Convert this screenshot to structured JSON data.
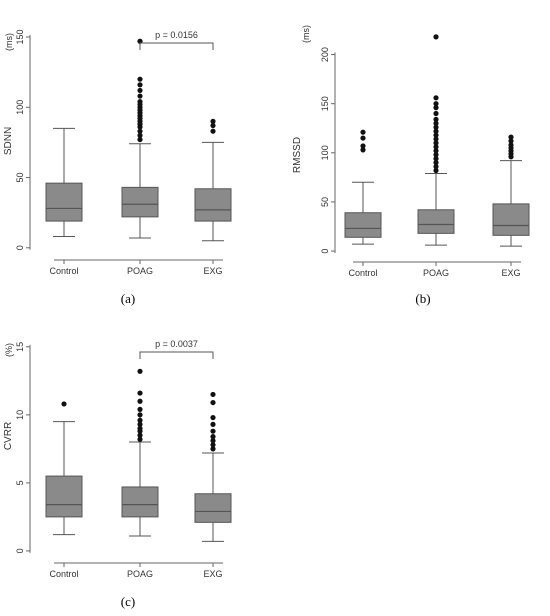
{
  "chart_data": [
    {
      "type": "box",
      "panel_label": "(a)",
      "ylabel": "SDNN",
      "unit": "(ms)",
      "categories": [
        "Control",
        "POAG",
        "EXG"
      ],
      "yticks": [
        0,
        50,
        100,
        150
      ],
      "ylim": [
        -3,
        155
      ],
      "boxes": [
        {
          "whisker_low": 8,
          "q1": 19,
          "median": 28,
          "q3": 46,
          "whisker_high": 85,
          "outliers": []
        },
        {
          "whisker_low": 7,
          "q1": 22,
          "median": 31,
          "q3": 43,
          "whisker_high": 74,
          "outliers": [
            77,
            80,
            83,
            86,
            88,
            90,
            92,
            94,
            96,
            98,
            100,
            102,
            104,
            108,
            112,
            116,
            120,
            147
          ]
        },
        {
          "whisker_low": 5,
          "q1": 19,
          "median": 27,
          "q3": 42,
          "whisker_high": 75,
          "outliers": [
            83,
            87,
            90
          ]
        }
      ],
      "comparison": {
        "from": 1,
        "to": 2,
        "label": "p = 0.0156"
      }
    },
    {
      "type": "box",
      "panel_label": "(b)",
      "ylabel": "RMSSD",
      "unit": "(ms)",
      "categories": [
        "Control",
        "POAG",
        "EXG"
      ],
      "yticks": [
        0,
        50,
        100,
        150,
        200
      ],
      "ylim": [
        -3,
        225
      ],
      "boxes": [
        {
          "whisker_low": 7,
          "q1": 14,
          "median": 23,
          "q3": 39,
          "whisker_high": 70,
          "outliers": [
            103,
            107,
            115,
            121
          ]
        },
        {
          "whisker_low": 6,
          "q1": 18,
          "median": 27,
          "q3": 42,
          "whisker_high": 79,
          "outliers": [
            82,
            86,
            90,
            94,
            98,
            102,
            106,
            110,
            114,
            118,
            122,
            126,
            130,
            134,
            140,
            146,
            150,
            156,
            218
          ]
        },
        {
          "whisker_low": 5,
          "q1": 16,
          "median": 26,
          "q3": 48,
          "whisker_high": 92,
          "outliers": [
            96,
            99,
            102,
            105,
            108,
            112,
            116
          ]
        }
      ]
    },
    {
      "type": "box",
      "panel_label": "(c)",
      "ylabel": "CVRR",
      "unit": "(%)",
      "categories": [
        "Control",
        "POAG",
        "EXG"
      ],
      "yticks": [
        0,
        5,
        10,
        15
      ],
      "ylim": [
        -0.3,
        15.5
      ],
      "boxes": [
        {
          "whisker_low": 1.2,
          "q1": 2.5,
          "median": 3.4,
          "q3": 5.5,
          "whisker_high": 9.5,
          "outliers": [
            10.8
          ]
        },
        {
          "whisker_low": 1.1,
          "q1": 2.5,
          "median": 3.4,
          "q3": 4.7,
          "whisker_high": 8.0,
          "outliers": [
            8.2,
            8.5,
            8.8,
            9.0,
            9.3,
            9.6,
            10.0,
            10.4,
            11.0,
            11.6,
            13.2
          ]
        },
        {
          "whisker_low": 0.7,
          "q1": 2.1,
          "median": 2.9,
          "q3": 4.2,
          "whisker_high": 7.2,
          "outliers": [
            7.5,
            7.8,
            8.1,
            8.4,
            8.8,
            9.3,
            9.8,
            10.9,
            11.5
          ]
        }
      ],
      "comparison": {
        "from": 1,
        "to": 2,
        "label": "p = 0.0037"
      }
    }
  ],
  "colors": {
    "box_fill": "#8a8a8a",
    "stroke": "#555555",
    "outlier": "#111111",
    "axis": "#666666"
  }
}
